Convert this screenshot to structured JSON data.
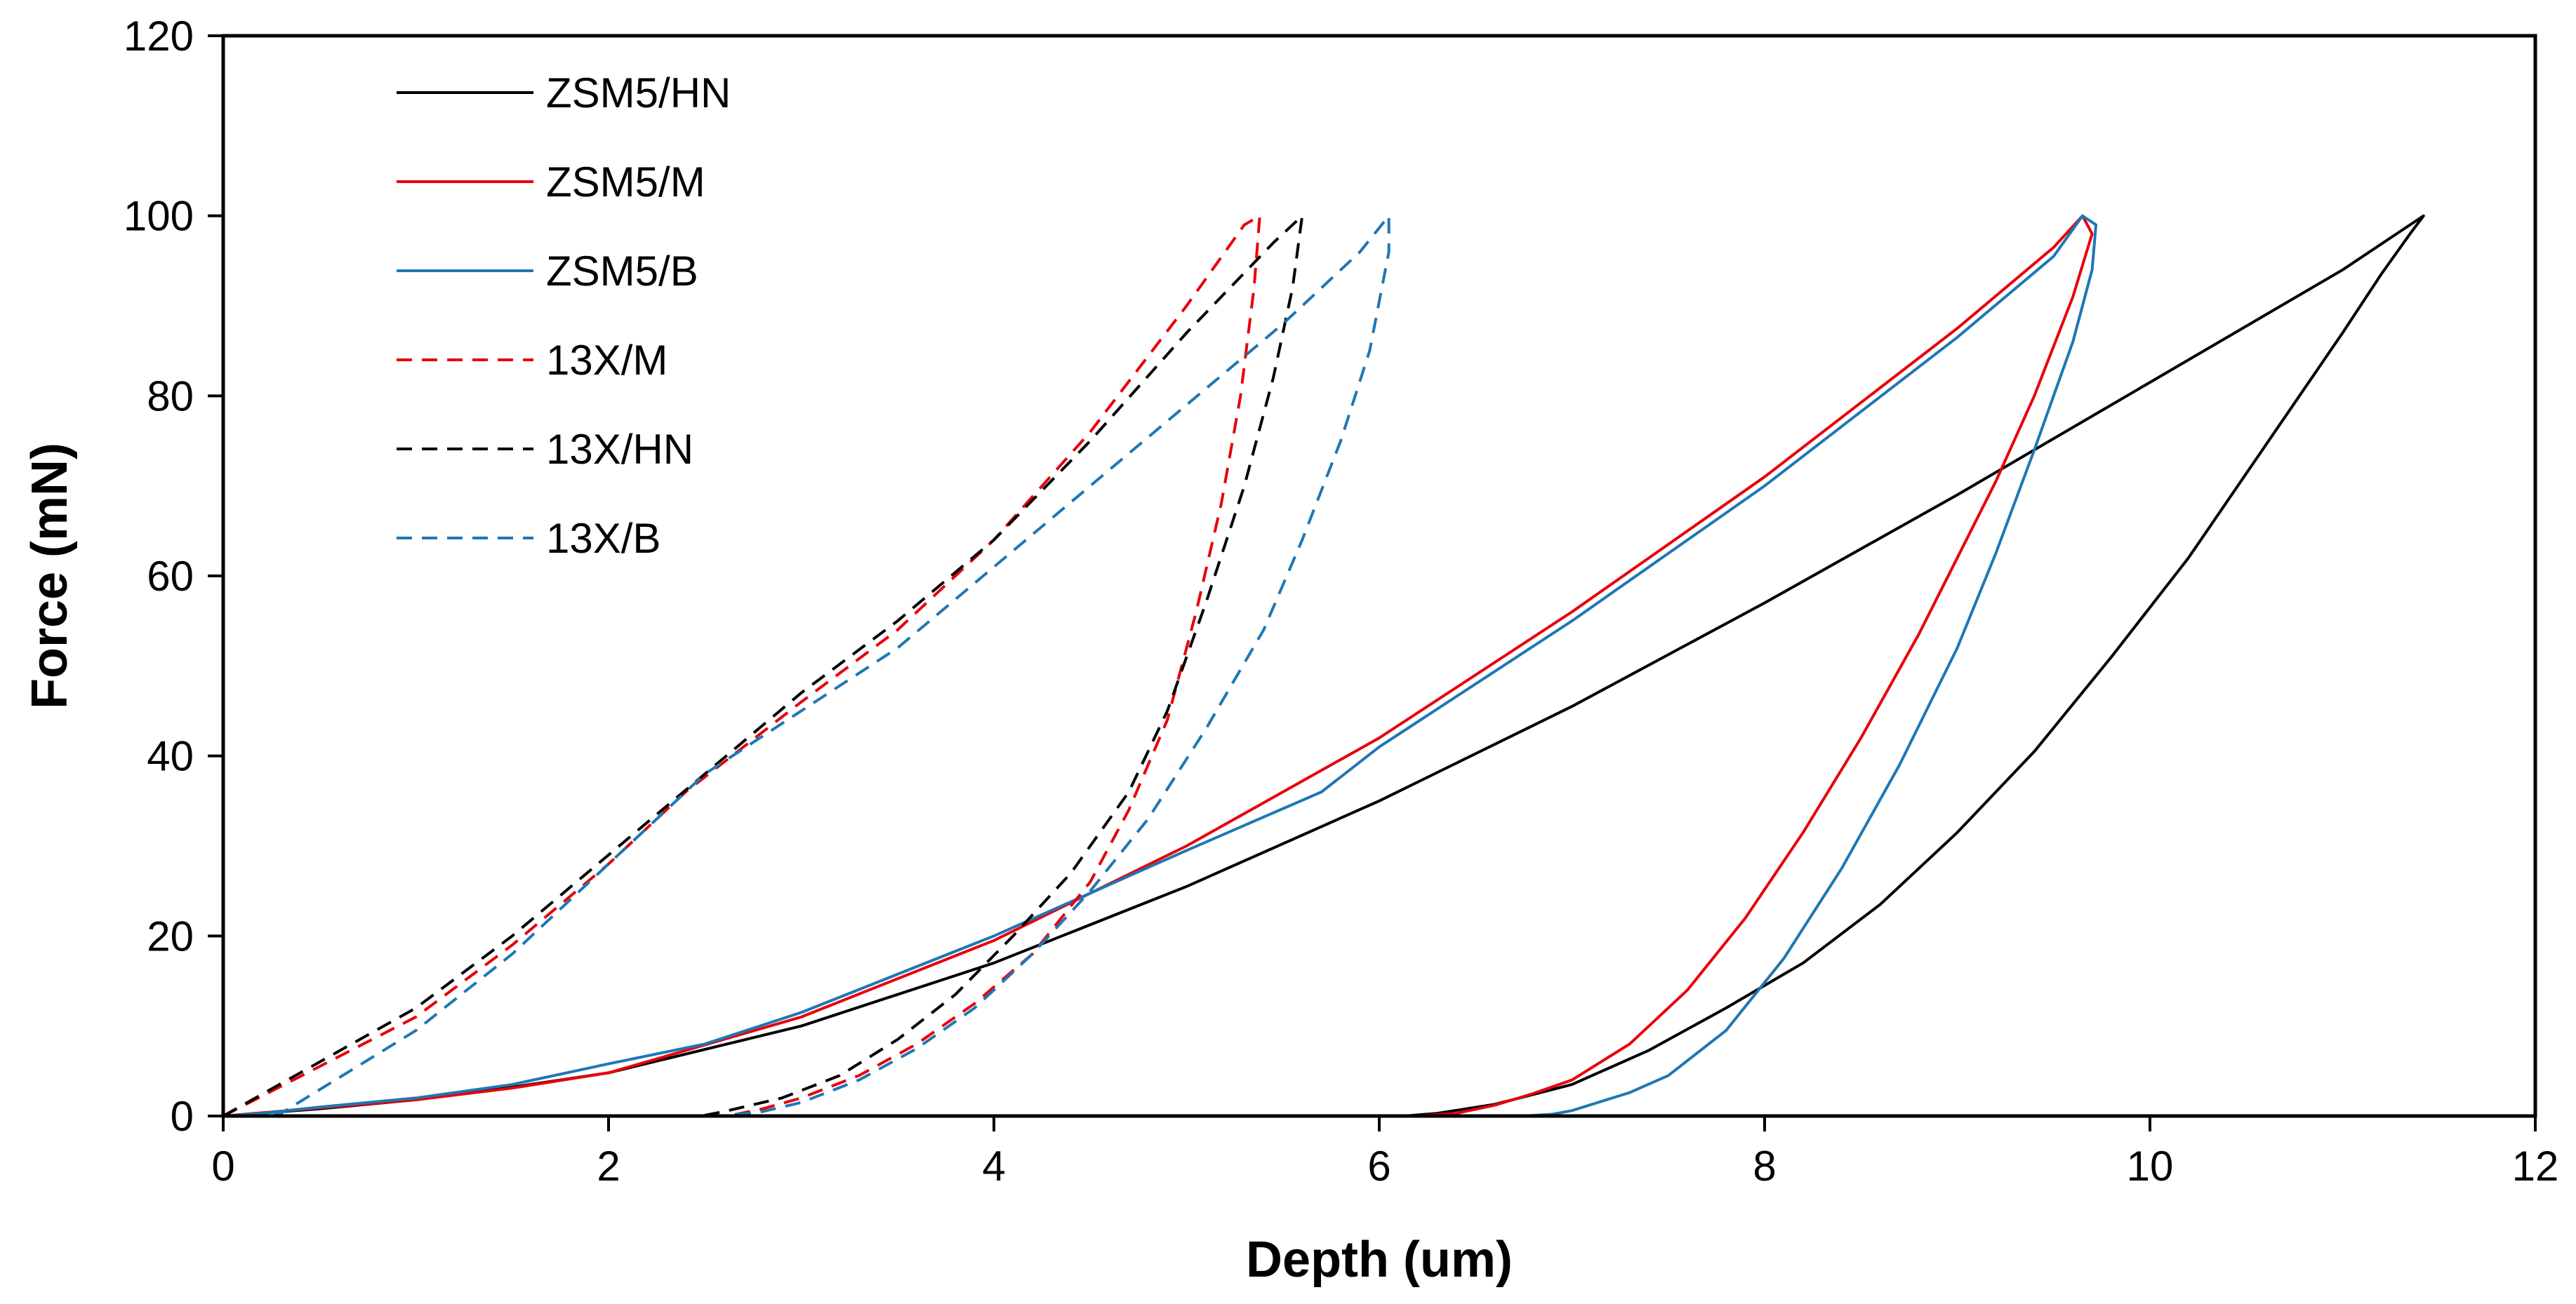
{
  "chart_data": {
    "type": "line",
    "title": "",
    "xlabel": "Depth (um)",
    "ylabel": "Force (mN)",
    "xlim": [
      0,
      12
    ],
    "ylim": [
      0,
      120
    ],
    "xticks": [
      0,
      2,
      4,
      6,
      8,
      10,
      12
    ],
    "yticks": [
      0,
      20,
      40,
      60,
      80,
      100,
      120
    ],
    "grid": false,
    "legend_position": "top-left",
    "series": [
      {
        "name": "ZSM5/HN",
        "color": "#000000",
        "dash": "solid",
        "x": [
          0,
          0.5,
          1,
          1.5,
          2,
          3,
          4,
          5,
          6,
          7,
          8,
          9,
          10,
          11,
          11.35,
          11.42,
          11.35,
          11.2,
          11.0,
          10.6,
          10.2,
          9.8,
          9.4,
          9.0,
          8.6,
          8.2,
          7.8,
          7.4,
          7.0,
          6.6,
          6.3,
          6.13
        ],
        "y": [
          0,
          0.8,
          1.8,
          3.2,
          4.8,
          10,
          17,
          25.5,
          35,
          45.5,
          57,
          69,
          81.5,
          94,
          99,
          100,
          98,
          93.5,
          87,
          74.5,
          62,
          51,
          40.5,
          31.5,
          23.5,
          17,
          12,
          7.3,
          3.5,
          1.3,
          0.3,
          0
        ]
      },
      {
        "name": "ZSM5/M",
        "color": "#e8000b",
        "dash": "solid",
        "x": [
          0,
          0.5,
          1,
          1.5,
          2,
          3,
          4,
          5,
          6,
          7,
          8,
          9,
          9.5,
          9.65,
          9.7,
          9.6,
          9.4,
          9.2,
          9.0,
          8.8,
          8.5,
          8.2,
          7.9,
          7.6,
          7.3,
          7.0,
          6.8,
          6.6,
          6.4,
          6.2
        ],
        "y": [
          0,
          0.9,
          1.8,
          3.1,
          4.8,
          11,
          19.5,
          30,
          42,
          56,
          71,
          87.5,
          96.5,
          100,
          98,
          91,
          80,
          70.5,
          62,
          53.5,
          42,
          31.5,
          22,
          14,
          8,
          4,
          2.5,
          1.2,
          0.3,
          0
        ]
      },
      {
        "name": "ZSM5/B",
        "color": "#1f77b4",
        "dash": "solid",
        "x": [
          0,
          0.2,
          0.5,
          1,
          1.5,
          2,
          2.5,
          3,
          4,
          5,
          5.7,
          6,
          7,
          8,
          9,
          9.5,
          9.65,
          9.72,
          9.7,
          9.6,
          9.4,
          9.2,
          9.0,
          8.7,
          8.4,
          8.1,
          7.8,
          7.5,
          7.3,
          7.0,
          6.9,
          6.75
        ],
        "y": [
          0,
          0.3,
          1,
          2,
          3.5,
          5.8,
          8,
          11.5,
          20,
          29.5,
          36,
          41,
          55,
          70,
          86.5,
          95.5,
          100,
          99,
          94,
          86,
          74,
          62.5,
          52,
          39,
          27.5,
          17.5,
          9.5,
          4.5,
          2.6,
          0.6,
          0.2,
          0
        ]
      },
      {
        "name": "13X/M",
        "color": "#e8000b",
        "dash": "dashed",
        "x": [
          0,
          0.5,
          1,
          1.5,
          2,
          2.4,
          3,
          3.5,
          4,
          4.5,
          5,
          5.3,
          5.38,
          5.35,
          5.28,
          5.18,
          5.05,
          4.9,
          4.7,
          4.5,
          4.2,
          3.9,
          3.6,
          3.3,
          3.0,
          2.8,
          2.62
        ],
        "y": [
          0,
          5.5,
          11,
          19,
          28,
          36,
          46,
          54,
          64,
          76,
          90,
          99,
          100,
          92,
          80,
          68,
          56,
          44,
          34,
          26,
          18,
          12.5,
          8,
          4.5,
          2,
          0.8,
          0
        ]
      },
      {
        "name": "13X/HN",
        "color": "#000000",
        "dash": "dashed",
        "x": [
          0,
          0.5,
          1,
          1.5,
          2,
          2.5,
          3,
          3.5,
          4,
          4.5,
          5,
          5.45,
          5.6,
          5.55,
          5.45,
          5.3,
          5.1,
          4.9,
          4.7,
          4.4,
          4.1,
          3.8,
          3.5,
          3.2,
          2.9,
          2.6,
          2.48
        ],
        "y": [
          0,
          6,
          12,
          20,
          29,
          38,
          47,
          55,
          64,
          75,
          87,
          97,
          100,
          92,
          82,
          70,
          57,
          45,
          36,
          27,
          20,
          13.5,
          8.5,
          4.5,
          2,
          0.5,
          0
        ]
      },
      {
        "name": "13X/B",
        "color": "#1f77b4",
        "dash": "dashed",
        "x": [
          0,
          0.3,
          1,
          1.5,
          2,
          2.5,
          3,
          3.5,
          4,
          4.5,
          5,
          5.5,
          5.9,
          6.05,
          6.05,
          5.95,
          5.8,
          5.6,
          5.4,
          5.1,
          4.8,
          4.5,
          4.2,
          3.9,
          3.6,
          3.3,
          3.0,
          2.8,
          2.6
        ],
        "y": [
          0,
          0.3,
          9.5,
          18,
          28,
          38,
          45,
          52,
          61,
          70,
          79,
          88,
          96,
          100,
          96,
          85,
          75,
          64,
          54,
          43,
          33,
          25,
          18,
          12,
          7.5,
          4,
          1.5,
          0.5,
          0
        ]
      }
    ]
  }
}
